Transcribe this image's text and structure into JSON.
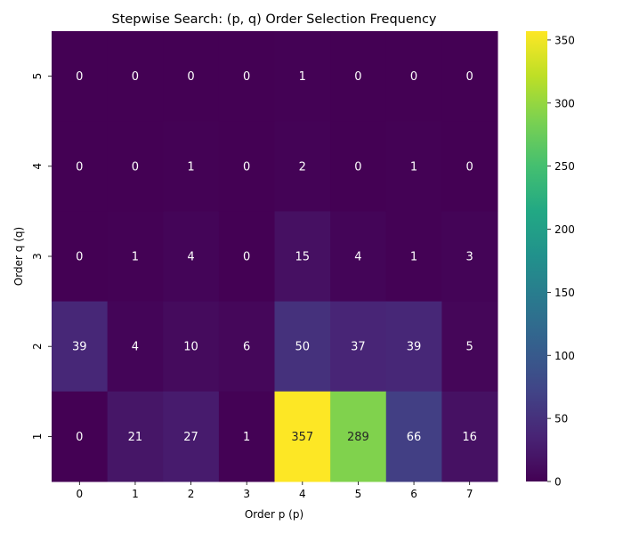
{
  "chart_data": {
    "type": "heatmap",
    "title": "Stepwise Search: (p, q) Order Selection Frequency",
    "xlabel": "Order p (p)",
    "ylabel": "Order q (q)",
    "x_categories": [
      "0",
      "1",
      "2",
      "3",
      "4",
      "5",
      "6",
      "7"
    ],
    "y_categories": [
      "5",
      "4",
      "3",
      "2",
      "1"
    ],
    "values": [
      [
        0,
        0,
        0,
        0,
        1,
        0,
        0,
        0
      ],
      [
        0,
        0,
        1,
        0,
        2,
        0,
        1,
        0
      ],
      [
        0,
        1,
        4,
        0,
        15,
        4,
        1,
        3
      ],
      [
        39,
        4,
        10,
        6,
        50,
        37,
        39,
        5
      ],
      [
        0,
        21,
        27,
        1,
        357,
        289,
        66,
        16
      ]
    ],
    "colormap": "viridis",
    "vmin": 0,
    "vmax": 357,
    "colorbar_ticks": [
      "0",
      "50",
      "100",
      "150",
      "200",
      "250",
      "300",
      "350"
    ],
    "annotations": true,
    "grid": false
  }
}
